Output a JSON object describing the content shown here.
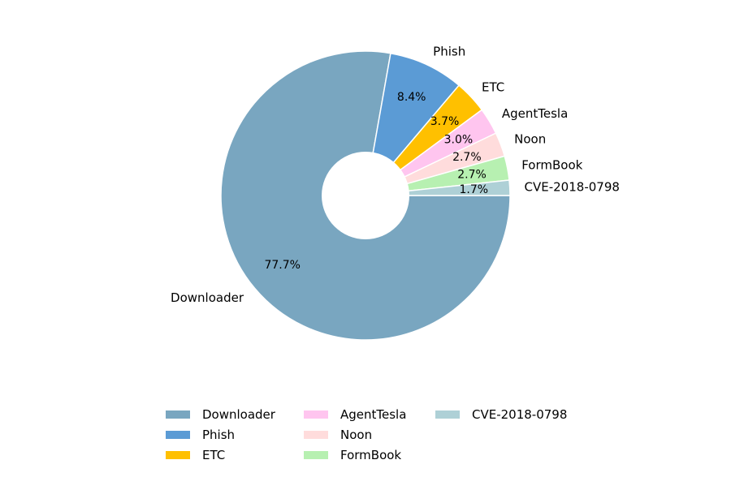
{
  "chart_data": {
    "type": "pie",
    "title": "",
    "donut": true,
    "start_angle_deg": 0,
    "direction": "clockwise",
    "slices": [
      {
        "label": "Downloader",
        "value": 77.7,
        "pct_label": "77.7%",
        "color": "#79a6c0"
      },
      {
        "label": "Phish",
        "value": 8.4,
        "pct_label": "8.4%",
        "color": "#5b9bd5"
      },
      {
        "label": "ETC",
        "value": 3.7,
        "pct_label": "3.7%",
        "color": "#ffc000"
      },
      {
        "label": "AgentTesla",
        "value": 3.0,
        "pct_label": "3.0%",
        "color": "#ffc5ef"
      },
      {
        "label": "Noon",
        "value": 2.7,
        "pct_label": "2.7%",
        "color": "#ffdcdc"
      },
      {
        "label": "FormBook",
        "value": 2.7,
        "pct_label": "2.7%",
        "color": "#b7f0b1"
      },
      {
        "label": "CVE-2018-0798",
        "value": 1.7,
        "pct_label": "1.7%",
        "color": "#aed0d6"
      }
    ],
    "legend": {
      "placement": "bottom-center",
      "columns": 3,
      "items": [
        "Downloader",
        "Phish",
        "ETC",
        "AgentTesla",
        "Noon",
        "FormBook",
        "CVE-2018-0798"
      ]
    }
  }
}
